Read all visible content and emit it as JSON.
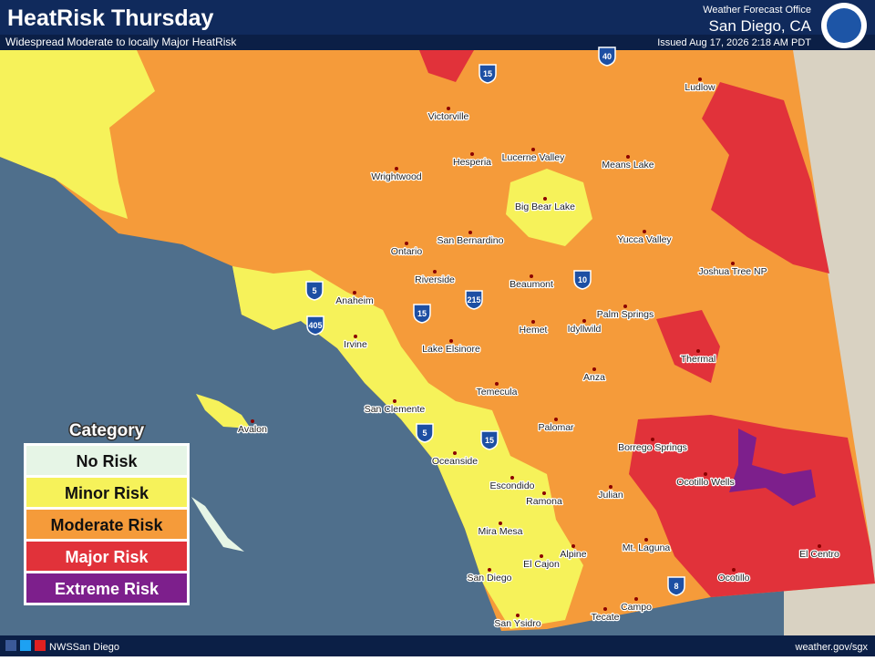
{
  "header": {
    "title": "HeatRisk Thursday",
    "subtitle": "Widespread Moderate to locally Major HeatRisk",
    "office": "Weather Forecast Office",
    "location": "San Diego, CA",
    "issued": "Issued Aug 17, 2026 2:18 AM PDT"
  },
  "legend": {
    "title": "Category",
    "items": [
      {
        "label": "No Risk",
        "color": "#e6f5e6"
      },
      {
        "label": "Minor Risk",
        "color": "#f6f25a"
      },
      {
        "label": "Moderate Risk",
        "color": "#f59b3a"
      },
      {
        "label": "Major Risk",
        "color": "#e1323a"
      },
      {
        "label": "Extreme Risk",
        "color": "#7d1f8c"
      }
    ]
  },
  "cities": [
    "Victorville",
    "Hesperia",
    "Lucerne Valley",
    "Means Lake",
    "Ludlow",
    "Wrightwood",
    "Big Bear Lake",
    "San Bernardino",
    "Ontario",
    "Yucca Valley",
    "Joshua Tree NP",
    "Riverside",
    "Beaumont",
    "Anaheim",
    "Palm Springs",
    "Hemet",
    "Idyllwild",
    "Irvine",
    "Lake Elsinore",
    "Thermal",
    "Anza",
    "Temecula",
    "San Clemente",
    "Avalon",
    "Palomar",
    "Borrego Springs",
    "Oceanside",
    "Ocotillo Wells",
    "Escondido",
    "Julian",
    "Ramona",
    "Mira Mesa",
    "Alpine",
    "Mt. Laguna",
    "El Cajon",
    "El Centro",
    "Ocotillo",
    "San Diego",
    "Campo",
    "Tecate",
    "San Ysidro"
  ],
  "highways": [
    "40",
    "15",
    "10",
    "5",
    "405",
    "15",
    "215",
    "5",
    "15",
    "8"
  ],
  "footer": {
    "social": "NWSSan Diego",
    "site": "weather.gov/sgx"
  }
}
